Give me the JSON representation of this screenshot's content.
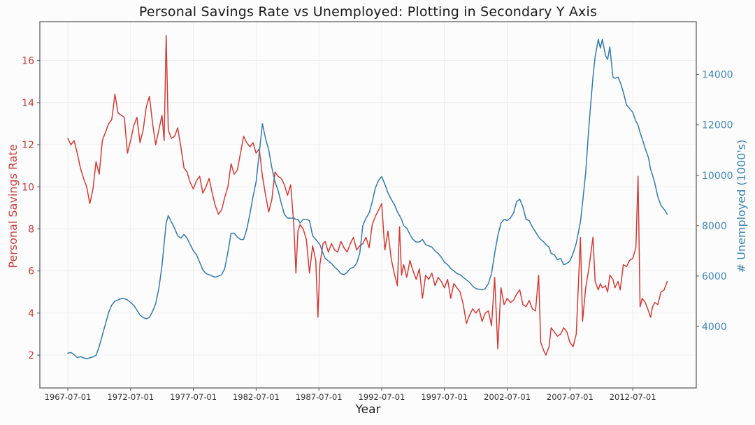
{
  "title": "Personal Savings Rate vs Unemployed: Plotting in Secondary Y Axis",
  "axes": {
    "x_label": "Year",
    "y_left_label": "Personal Savings Rate",
    "y_right_label": "# Unemployed (1000's)",
    "y_left_color": "#c2413e",
    "y_right_color": "#4186b4",
    "x_tick_color": "#333333",
    "grid_color": "#ededed",
    "spine_color": "#555555"
  },
  "chart_data": {
    "type": "line",
    "title": "Personal Savings Rate vs Unemployed: Plotting in Secondary Y Axis",
    "xlabel": "Year",
    "ylabel_left": "Personal Savings Rate",
    "ylabel_right": "# Unemployed (1000's)",
    "legend_position": "none",
    "grid": true,
    "x_unit": "decimal_year",
    "xlim": [
      1965.27,
      2017.56
    ],
    "ylim_left": [
      0.44,
      17.85
    ],
    "ylim_right": [
      1556,
      16100
    ],
    "x_ticks": {
      "values": [
        1967.5,
        1972.5,
        1977.5,
        1982.5,
        1987.5,
        1992.5,
        1997.5,
        2002.5,
        2007.5,
        2012.5
      ],
      "labels": [
        "1967-07-01",
        "1972-07-01",
        "1977-07-01",
        "1982-07-01",
        "1987-07-01",
        "1992-07-01",
        "1997-07-01",
        "2002-07-01",
        "2007-07-01",
        "2012-07-01"
      ]
    },
    "y_left_ticks": [
      2,
      4,
      6,
      8,
      10,
      12,
      14,
      16
    ],
    "y_right_ticks": [
      4000,
      6000,
      8000,
      10000,
      12000,
      14000
    ],
    "x": [
      1967.5,
      1967.75,
      1968,
      1968.25,
      1968.5,
      1968.75,
      1969,
      1969.25,
      1969.5,
      1969.75,
      1970,
      1970.25,
      1970.5,
      1970.75,
      1971,
      1971.25,
      1971.5,
      1971.75,
      1972,
      1972.25,
      1972.5,
      1972.75,
      1973,
      1973.25,
      1973.5,
      1973.75,
      1974,
      1974.25,
      1974.5,
      1974.75,
      1975,
      1975.17,
      1975.33,
      1975.5,
      1975.75,
      1976,
      1976.25,
      1976.5,
      1976.75,
      1977,
      1977.25,
      1977.5,
      1977.75,
      1978,
      1978.25,
      1978.5,
      1978.75,
      1979,
      1979.25,
      1979.5,
      1979.75,
      1980,
      1980.25,
      1980.5,
      1980.75,
      1981,
      1981.25,
      1981.5,
      1981.75,
      1982,
      1982.25,
      1982.5,
      1982.75,
      1983,
      1983.25,
      1983.5,
      1983.75,
      1984,
      1984.25,
      1984.5,
      1984.75,
      1985,
      1985.25,
      1985.5,
      1985.67,
      1985.83,
      1986,
      1986.25,
      1986.5,
      1986.75,
      1987,
      1987.25,
      1987.42,
      1987.58,
      1987.83,
      1988,
      1988.25,
      1988.5,
      1988.75,
      1989,
      1989.25,
      1989.5,
      1989.75,
      1990,
      1990.25,
      1990.5,
      1990.75,
      1991,
      1991.25,
      1991.5,
      1991.75,
      1992,
      1992.25,
      1992.5,
      1992.75,
      1993,
      1993.25,
      1993.5,
      1993.75,
      1993.92,
      1994.08,
      1994.25,
      1994.5,
      1994.75,
      1995,
      1995.25,
      1995.5,
      1995.75,
      1996,
      1996.25,
      1996.5,
      1996.75,
      1997,
      1997.25,
      1997.5,
      1997.75,
      1998,
      1998.25,
      1998.5,
      1998.75,
      1999,
      1999.25,
      1999.5,
      1999.75,
      2000,
      2000.25,
      2000.5,
      2000.75,
      2001,
      2001.25,
      2001.5,
      2001.75,
      2002,
      2002.25,
      2002.5,
      2002.75,
      2003,
      2003.25,
      2003.5,
      2003.75,
      2004,
      2004.25,
      2004.5,
      2004.75,
      2005,
      2005.17,
      2005.42,
      2005.58,
      2005.83,
      2006,
      2006.25,
      2006.5,
      2006.75,
      2007,
      2007.25,
      2007.5,
      2007.75,
      2008,
      2008.33,
      2008.5,
      2008.75,
      2009,
      2009.33,
      2009.5,
      2009.75,
      2009.92,
      2010.08,
      2010.33,
      2010.5,
      2010.67,
      2010.92,
      2011.08,
      2011.33,
      2011.5,
      2011.75,
      2012,
      2012.25,
      2012.5,
      2012.75,
      2012.92,
      2013.08,
      2013.25,
      2013.5,
      2013.75,
      2013.92,
      2014.08,
      2014.25,
      2014.5,
      2014.75,
      2015,
      2015.25
    ],
    "series": [
      {
        "name": "Personal Savings Rate",
        "yaxis": "left",
        "color": "#cf3c38",
        "values": [
          12.3,
          12.0,
          12.2,
          11.6,
          10.9,
          10.4,
          10.0,
          9.2,
          9.9,
          11.2,
          10.6,
          12.2,
          12.6,
          13.0,
          13.2,
          14.4,
          13.5,
          13.4,
          13.3,
          11.6,
          12.2,
          12.9,
          13.3,
          12.1,
          12.7,
          13.8,
          14.3,
          13.0,
          12.0,
          12.7,
          13.4,
          12.2,
          17.2,
          12.7,
          12.3,
          12.4,
          12.8,
          11.9,
          10.9,
          10.7,
          10.2,
          9.9,
          10.3,
          10.5,
          9.7,
          10.0,
          10.4,
          9.7,
          9.1,
          8.7,
          8.9,
          9.5,
          10.0,
          11.1,
          10.6,
          10.8,
          11.6,
          12.4,
          12.1,
          11.9,
          12.1,
          11.6,
          11.8,
          10.5,
          9.6,
          8.8,
          9.4,
          10.7,
          10.5,
          10.4,
          10.1,
          9.6,
          10.1,
          8.2,
          5.9,
          7.9,
          8.2,
          8.0,
          7.5,
          5.9,
          7.2,
          6.5,
          3.8,
          6.3,
          7.3,
          7.4,
          6.9,
          7.3,
          7.0,
          6.9,
          7.4,
          7.1,
          6.9,
          7.3,
          7.6,
          7.0,
          7.2,
          7.3,
          7.6,
          7.1,
          8.2,
          8.6,
          8.9,
          9.2,
          7.0,
          7.9,
          6.6,
          5.9,
          5.3,
          8.1,
          5.8,
          6.3,
          5.7,
          6.5,
          6.0,
          5.6,
          6.1,
          4.7,
          5.8,
          5.6,
          5.9,
          5.3,
          5.7,
          5.5,
          5.2,
          5.6,
          4.7,
          5.4,
          5.2,
          5.0,
          4.4,
          3.5,
          3.9,
          4.2,
          4.0,
          4.2,
          3.6,
          4.0,
          4.1,
          3.4,
          5.7,
          2.3,
          5.2,
          4.4,
          4.7,
          4.5,
          4.6,
          4.9,
          5.1,
          4.4,
          4.3,
          4.6,
          4.2,
          4.1,
          5.8,
          2.6,
          2.2,
          2.0,
          2.4,
          3.3,
          3.1,
          2.9,
          3.0,
          3.3,
          3.1,
          2.6,
          2.4,
          3.0,
          7.6,
          3.6,
          5.2,
          6.1,
          7.6,
          5.5,
          5.1,
          5.4,
          5.2,
          5.3,
          5.0,
          5.8,
          5.6,
          5.2,
          5.5,
          5.1,
          6.3,
          6.2,
          6.5,
          6.6,
          7.1,
          10.5,
          4.3,
          4.7,
          4.5,
          4.1,
          3.8,
          4.3,
          4.5,
          4.4,
          5.0,
          5.1,
          5.5
        ]
      },
      {
        "name": "# Unemployed (1000's)",
        "yaxis": "right",
        "color": "#3579a8",
        "values": [
          2940,
          2960,
          2880,
          2760,
          2800,
          2750,
          2720,
          2750,
          2790,
          2850,
          3200,
          3650,
          4100,
          4550,
          4850,
          5000,
          5050,
          5100,
          5100,
          5050,
          4950,
          4840,
          4650,
          4450,
          4350,
          4300,
          4360,
          4600,
          4900,
          5500,
          6400,
          7300,
          8100,
          8400,
          8150,
          7900,
          7600,
          7500,
          7650,
          7500,
          7250,
          7000,
          6850,
          6550,
          6250,
          6100,
          6050,
          6000,
          5950,
          6000,
          6050,
          6300,
          6950,
          7700,
          7700,
          7550,
          7450,
          7450,
          7850,
          8450,
          9150,
          9750,
          10900,
          12050,
          11450,
          11000,
          10300,
          9750,
          9400,
          8900,
          8450,
          8300,
          8300,
          8300,
          8250,
          8250,
          8100,
          8250,
          8250,
          8200,
          7600,
          7450,
          7350,
          7250,
          6900,
          6700,
          6600,
          6500,
          6350,
          6250,
          6100,
          6050,
          6150,
          6300,
          6350,
          6500,
          6900,
          8000,
          8300,
          8500,
          8950,
          9500,
          9800,
          9950,
          9650,
          9300,
          9050,
          8850,
          8550,
          8400,
          8250,
          8000,
          7900,
          7650,
          7450,
          7350,
          7350,
          7450,
          7250,
          7200,
          7150,
          7000,
          6900,
          6750,
          6550,
          6450,
          6300,
          6200,
          6100,
          6050,
          5950,
          5850,
          5750,
          5600,
          5500,
          5480,
          5450,
          5500,
          5700,
          6100,
          6900,
          7600,
          8100,
          8250,
          8200,
          8300,
          8500,
          8950,
          9050,
          8750,
          8250,
          8200,
          7950,
          7750,
          7550,
          7450,
          7350,
          7250,
          7150,
          6900,
          6850,
          6650,
          6700,
          6450,
          6500,
          6600,
          6900,
          7300,
          8150,
          8900,
          10100,
          11900,
          13900,
          14700,
          15400,
          15050,
          15400,
          14750,
          14600,
          15100,
          13900,
          13850,
          13900,
          13700,
          13300,
          12800,
          12650,
          12500,
          12150,
          12000,
          11700,
          11450,
          11050,
          10700,
          10250,
          10000,
          9700,
          9150,
          8800,
          8650,
          8450
        ]
      }
    ]
  }
}
